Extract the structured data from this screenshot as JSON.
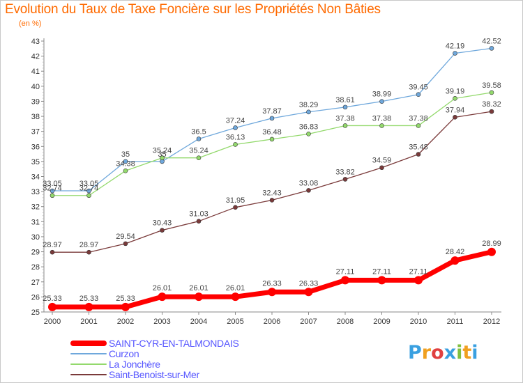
{
  "header": {
    "title": "Evolution du Taux de Taxe Foncière sur les Propriétés Non Bâties",
    "unit": "(en %)"
  },
  "logo": {
    "letters": [
      "P",
      "r",
      "o",
      "x",
      "i",
      "t",
      "i"
    ],
    "colors": [
      "#3aa0e0",
      "#f0a020",
      "#e04040",
      "#3aa0e0",
      "#80c040",
      "#f0a020",
      "#3aa0e0"
    ]
  },
  "chart_data": {
    "type": "line",
    "x": [
      "2000",
      "2001",
      "2002",
      "2003",
      "2004",
      "2005",
      "2006",
      "2007",
      "2008",
      "2009",
      "2010",
      "2011",
      "2012"
    ],
    "ylim": [
      25,
      43
    ],
    "yticks": [
      "25",
      "26",
      "27",
      "28",
      "29",
      "30",
      "31",
      "32",
      "33",
      "34",
      "35",
      "36",
      "37",
      "38",
      "39",
      "40",
      "41",
      "42",
      "43"
    ],
    "grid": false,
    "legend_position": "bottom-left",
    "series": [
      {
        "name": "SAINT-CYR-EN-TALMONDAIS",
        "color": "#ff0000",
        "values": [
          25.33,
          25.33,
          25.33,
          26.01,
          26.01,
          26.01,
          26.33,
          26.33,
          27.11,
          27.11,
          27.11,
          28.42,
          28.99
        ],
        "labels": [
          "25.33",
          "25.33",
          "25.33",
          "26.01",
          "26.01",
          "26.01",
          "26.33",
          "26.33",
          "27.11",
          "27.11",
          "27.11",
          "28.42",
          "28.99"
        ]
      },
      {
        "name": "Curzon",
        "color": "#6fa8dc",
        "values": [
          33.05,
          33.05,
          35,
          35,
          36.5,
          37.24,
          37.87,
          38.29,
          38.61,
          38.99,
          39.45,
          42.19,
          42.52
        ],
        "labels": [
          "33.05",
          "33.05",
          "35",
          "35",
          "36.5",
          "37.24",
          "37.87",
          "38.29",
          "38.61",
          "38.99",
          "39.45",
          "42.19",
          "42.52"
        ]
      },
      {
        "name": "La Jonchère",
        "color": "#93d96c",
        "values": [
          32.74,
          32.74,
          34.38,
          35.24,
          35.24,
          36.13,
          36.48,
          36.83,
          37.38,
          37.38,
          37.38,
          39.19,
          39.58
        ],
        "labels": [
          "32.74",
          "32.74",
          "34.38",
          "35.24",
          "35.24",
          "36.13",
          "36.48",
          "36.83",
          "37.38",
          "37.38",
          "37.38",
          "39.19",
          "39.58"
        ]
      },
      {
        "name": "Saint-Benoist-sur-Mer",
        "color": "#7a3a3a",
        "values": [
          28.97,
          28.97,
          29.54,
          30.43,
          31.03,
          31.95,
          32.43,
          33.08,
          33.82,
          34.59,
          35.48,
          37.94,
          38.32
        ],
        "labels": [
          "28.97",
          "28.97",
          "29.54",
          "30.43",
          "31.03",
          "31.95",
          "32.43",
          "33.08",
          "33.82",
          "34.59",
          "35.48",
          "37.94",
          "38.32"
        ]
      }
    ]
  }
}
